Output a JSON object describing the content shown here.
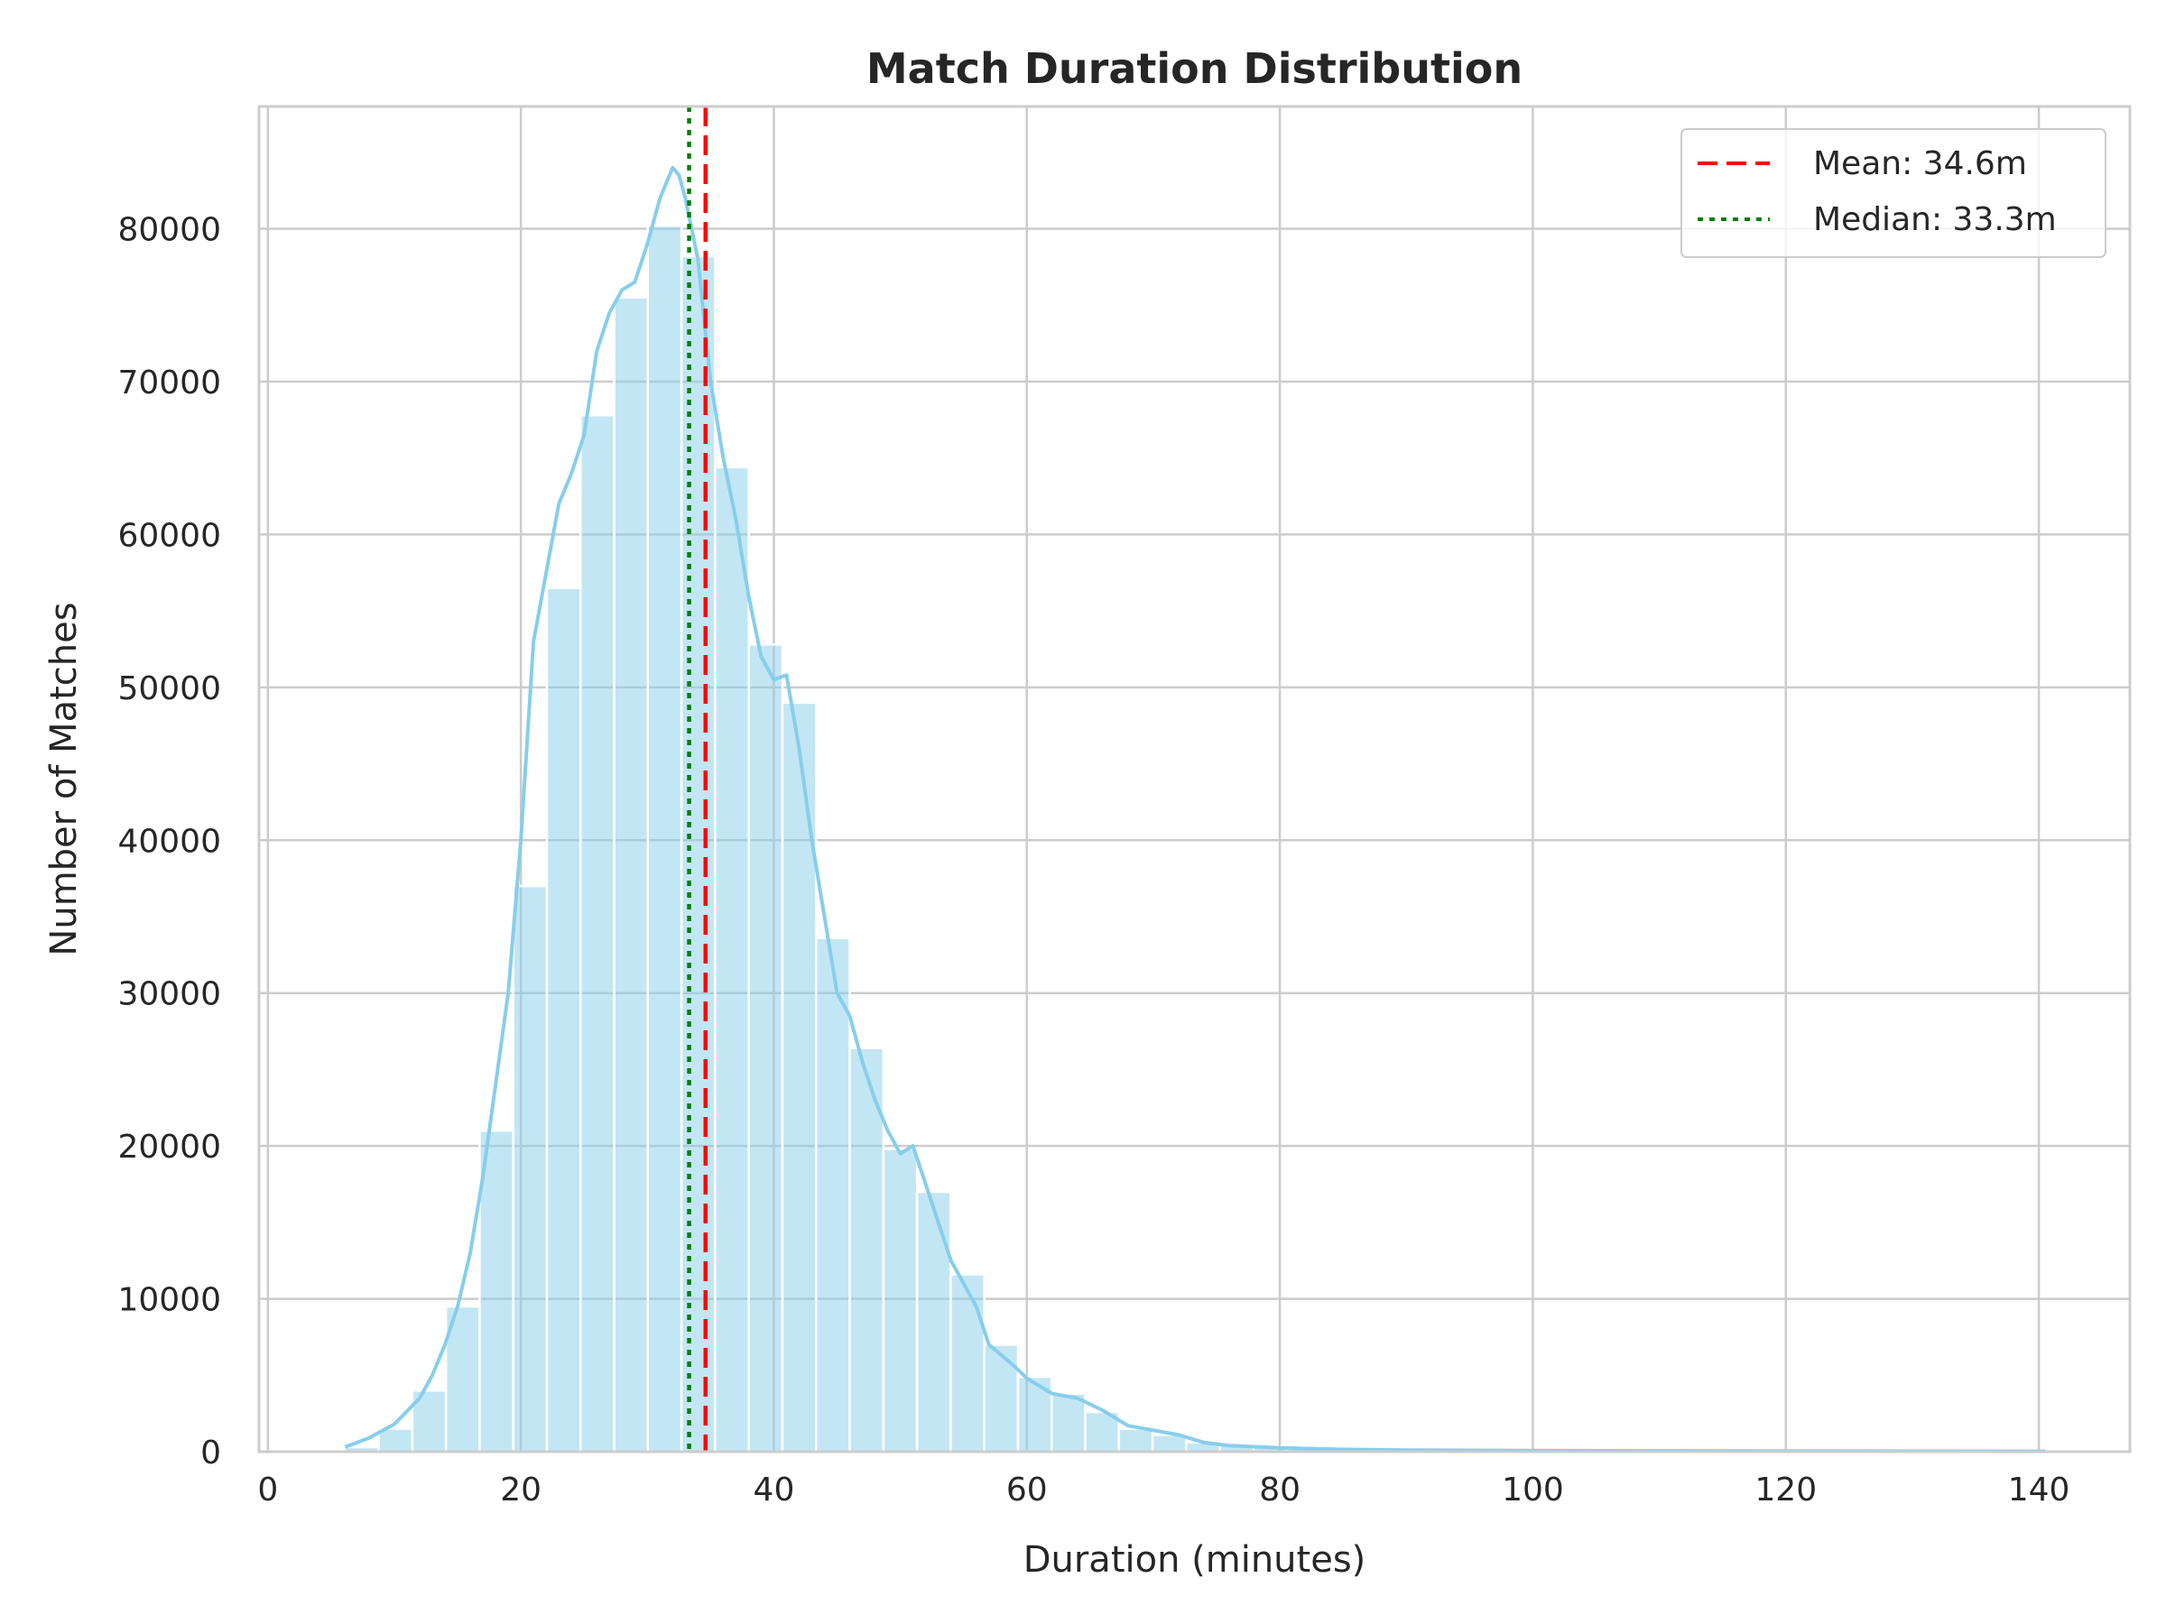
{
  "chart_data": {
    "type": "bar",
    "title": "Match Duration Distribution",
    "xlabel": "Duration (minutes)",
    "ylabel": "Number of Matches",
    "xlim": [
      -0.7,
      147.2
    ],
    "ylim": [
      0,
      88000
    ],
    "xticks": [
      0,
      20,
      40,
      60,
      80,
      100,
      120,
      140
    ],
    "xtick_labels": [
      "0",
      "20",
      "40",
      "60",
      "80",
      "100",
      "120",
      "140"
    ],
    "yticks": [
      0,
      10000,
      20000,
      30000,
      40000,
      50000,
      60000,
      70000,
      80000
    ],
    "ytick_labels": [
      "0",
      "10000",
      "20000",
      "30000",
      "40000",
      "50000",
      "60000",
      "70000",
      "80000"
    ],
    "grid": true,
    "legend_position": "top-right",
    "histogram": {
      "bin_start": 6.1,
      "bin_width": 2.66,
      "bar_color": "#87ceeb",
      "counts": [
        300,
        1500,
        4000,
        9500,
        21000,
        37000,
        56500,
        67800,
        75500,
        80200,
        78200,
        64400,
        52800,
        49000,
        33600,
        26400,
        19800,
        17000,
        11600,
        7000,
        4900,
        3800,
        2600,
        1500,
        1100,
        600,
        400,
        300,
        250,
        200,
        150,
        120,
        100,
        80,
        70,
        60,
        50,
        50,
        40,
        40,
        30,
        30,
        30,
        30,
        25,
        25,
        20,
        20,
        20,
        20
      ]
    },
    "kde": {
      "name": "kde",
      "color": "#87ceeb",
      "x": [
        6.1,
        8,
        10,
        12,
        13,
        14,
        15,
        16,
        17,
        18,
        19,
        20,
        21,
        22,
        23,
        24,
        25,
        26,
        27,
        28,
        29,
        30,
        31,
        32,
        32.5,
        33,
        34,
        35,
        36,
        37,
        38,
        39,
        40,
        41,
        42,
        43,
        44,
        45,
        46,
        47,
        48,
        49,
        50,
        51,
        52,
        53,
        54,
        55,
        56,
        57,
        58,
        59,
        60,
        62,
        64,
        66,
        68,
        70,
        72,
        74,
        76,
        80,
        85,
        90,
        100,
        110,
        120,
        130,
        140.5
      ],
      "y": [
        300,
        900,
        1800,
        3500,
        5000,
        7000,
        9500,
        13000,
        18000,
        24000,
        30000,
        40000,
        53000,
        57500,
        62000,
        64000,
        66500,
        72000,
        74500,
        76000,
        76500,
        79000,
        82000,
        84000,
        83500,
        82000,
        78000,
        70000,
        65000,
        61000,
        56000,
        52000,
        50500,
        50800,
        46000,
        40000,
        35000,
        30000,
        28500,
        25500,
        23000,
        21000,
        19500,
        20000,
        17500,
        15000,
        12500,
        11000,
        9500,
        7000,
        6300,
        5600,
        4800,
        3800,
        3500,
        2700,
        1700,
        1400,
        1100,
        600,
        400,
        250,
        150,
        100,
        70,
        50,
        40,
        30,
        20
      ]
    },
    "lines": [
      {
        "name": "Mean: 34.6m",
        "x": 34.6,
        "color": "#ff0000",
        "style": "dashed"
      },
      {
        "name": "Median: 33.3m",
        "x": 33.3,
        "color": "#008000",
        "style": "dotted"
      }
    ]
  }
}
